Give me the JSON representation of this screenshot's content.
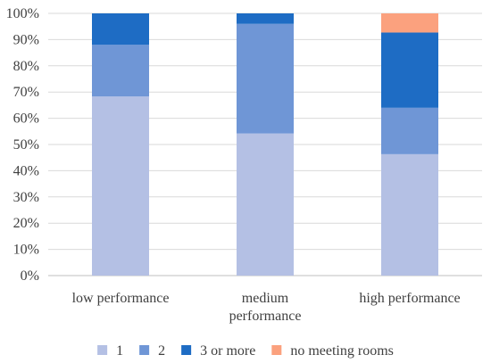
{
  "chart_data": {
    "type": "bar",
    "stacked": true,
    "title": "",
    "xlabel": "",
    "ylabel": "",
    "ylim": [
      0,
      100
    ],
    "y_ticks": [
      "0%",
      "10%",
      "20%",
      "30%",
      "40%",
      "50%",
      "60%",
      "70%",
      "80%",
      "90%",
      "100%"
    ],
    "grid": true,
    "legend_position": "bottom",
    "categories": [
      [
        "low performance"
      ],
      [
        "medium",
        "performance"
      ],
      [
        "high performance"
      ]
    ],
    "series": [
      {
        "name": "1",
        "color": "#b4c0e4",
        "values": [
          68.3,
          54.2,
          46.3
        ]
      },
      {
        "name": "2",
        "color": "#6f96d6",
        "values": [
          19.7,
          41.8,
          17.7
        ]
      },
      {
        "name": "3 or more",
        "color": "#1e6cc4",
        "values": [
          12.0,
          4.0,
          28.7
        ]
      },
      {
        "name": "no meeting rooms",
        "color": "#fba17e",
        "values": [
          0,
          0,
          7.3
        ]
      }
    ]
  }
}
